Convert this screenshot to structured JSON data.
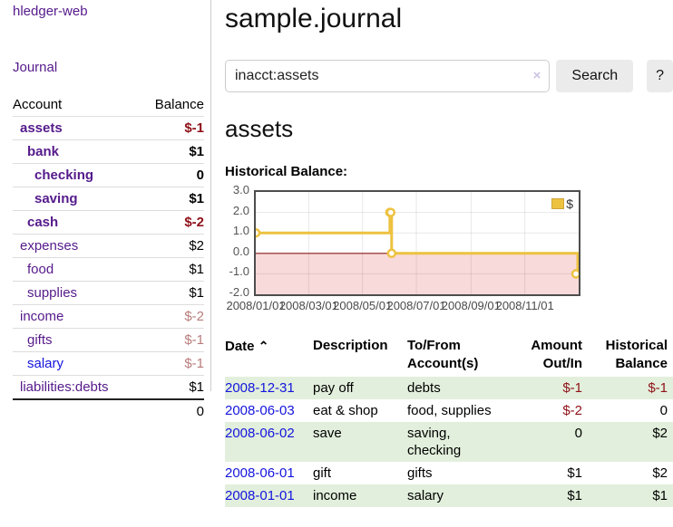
{
  "colors": {
    "link_purple": "#551A8B",
    "link_blue": "#1414DD",
    "negative_strong": "#8F1118",
    "negative_muted": "#B97C7C",
    "row_stripe_green": "#E2EFDC",
    "button_gray": "#EBEBEB",
    "chart_line": "#EDC240",
    "chart_negative_region": "#F9DADA",
    "chart_zero_line": "#8B1A1A"
  },
  "sidebar": {
    "brand": "hledger-web",
    "journal_link": "Journal",
    "table": {
      "headers": {
        "account": "Account",
        "balance": "Balance"
      },
      "rows": [
        {
          "account": "assets",
          "balance": "$-1",
          "indent": 1,
          "bold": true,
          "neg": "strong",
          "link": "purple"
        },
        {
          "account": "bank",
          "balance": "$1",
          "indent": 2,
          "bold": true,
          "neg": "",
          "link": "purple"
        },
        {
          "account": "checking",
          "balance": "0",
          "indent": 3,
          "bold": true,
          "neg": "",
          "link": "purple"
        },
        {
          "account": "saving",
          "balance": "$1",
          "indent": 3,
          "bold": true,
          "neg": "",
          "link": "purple"
        },
        {
          "account": "cash",
          "balance": "$-2",
          "indent": 2,
          "bold": true,
          "neg": "strong",
          "link": "purple"
        },
        {
          "account": "expenses",
          "balance": "$2",
          "indent": 1,
          "bold": false,
          "neg": "",
          "link": "purple"
        },
        {
          "account": "food",
          "balance": "$1",
          "indent": 2,
          "bold": false,
          "neg": "",
          "link": "purple"
        },
        {
          "account": "supplies",
          "balance": "$1",
          "indent": 2,
          "bold": false,
          "neg": "",
          "link": "purple"
        },
        {
          "account": "income",
          "balance": "$-2",
          "indent": 1,
          "bold": false,
          "neg": "muted",
          "link": "purple"
        },
        {
          "account": "gifts",
          "balance": "$-1",
          "indent": 2,
          "bold": false,
          "neg": "muted",
          "link": "purple"
        },
        {
          "account": "salary",
          "balance": "$-1",
          "indent": 2,
          "bold": false,
          "neg": "muted",
          "link": "blue"
        },
        {
          "account": "liabilities:debts",
          "balance": "$1",
          "indent": 1,
          "bold": false,
          "neg": "",
          "link": "purple"
        }
      ],
      "total": "0"
    }
  },
  "main": {
    "title": "sample.journal",
    "search": {
      "value": "inacct:assets",
      "clear_icon": "×",
      "button": "Search",
      "help_button": "?"
    },
    "account_heading": "assets",
    "chart_label": "Historical Balance:"
  },
  "chart_data": {
    "type": "line",
    "step": true,
    "title": "Historical Balance",
    "legend": [
      {
        "label": "$",
        "color": "#EDC240"
      }
    ],
    "ylim": [
      -2,
      3
    ],
    "y_ticks": [
      3.0,
      2.0,
      1.0,
      0.0,
      -1.0,
      -2.0
    ],
    "y_tick_labels": [
      "3.0",
      "2.0",
      "1.0",
      "0.0",
      "-1.0",
      "-2.0"
    ],
    "xlim_days": [
      0,
      366
    ],
    "x_ticks": [
      {
        "label": "2008/01/01",
        "day": 0
      },
      {
        "label": "2008/03/01",
        "day": 60
      },
      {
        "label": "2008/05/01",
        "day": 121
      },
      {
        "label": "2008/07/01",
        "day": 182
      },
      {
        "label": "2008/09/01",
        "day": 244
      },
      {
        "label": "2008/11/01",
        "day": 305
      }
    ],
    "points": [
      {
        "date": "2008-01-01",
        "day": 0,
        "value": 1.0
      },
      {
        "date": "2008-06-01",
        "day": 152,
        "value": 2.0
      },
      {
        "date": "2008-06-02",
        "day": 153,
        "value": 2.0
      },
      {
        "date": "2008-06-03",
        "day": 154,
        "value": 0.0
      },
      {
        "date": "2008-12-31",
        "day": 365,
        "value": -1.0
      }
    ],
    "grid": true,
    "legend_position": "top-right",
    "negative_region_shaded": true
  },
  "register": {
    "headers": {
      "date": "Date",
      "sort_icon": "⌃",
      "description": "Description",
      "account_line1": "To/From",
      "account_line2": "Account(s)",
      "amount_line1": "Amount",
      "amount_line2": "Out/In",
      "balance_line1": "Historical",
      "balance_line2": "Balance"
    },
    "rows": [
      {
        "date": "2008-12-31",
        "description": "pay off",
        "accounts": "debts",
        "amount": "$-1",
        "balance": "$-1",
        "amount_neg": true,
        "balance_neg": true,
        "striped": true
      },
      {
        "date": "2008-06-03",
        "description": "eat & shop",
        "accounts": "food, supplies",
        "amount": "$-2",
        "balance": "0",
        "amount_neg": true,
        "balance_neg": false,
        "striped": false
      },
      {
        "date": "2008-06-02",
        "description": "save",
        "accounts": "saving, checking",
        "amount": "0",
        "balance": "$2",
        "amount_neg": false,
        "balance_neg": false,
        "striped": true
      },
      {
        "date": "2008-06-01",
        "description": "gift",
        "accounts": "gifts",
        "amount": "$1",
        "balance": "$2",
        "amount_neg": false,
        "balance_neg": false,
        "striped": false
      },
      {
        "date": "2008-01-01",
        "description": "income",
        "accounts": "salary",
        "amount": "$1",
        "balance": "$1",
        "amount_neg": false,
        "balance_neg": false,
        "striped": true
      }
    ]
  }
}
